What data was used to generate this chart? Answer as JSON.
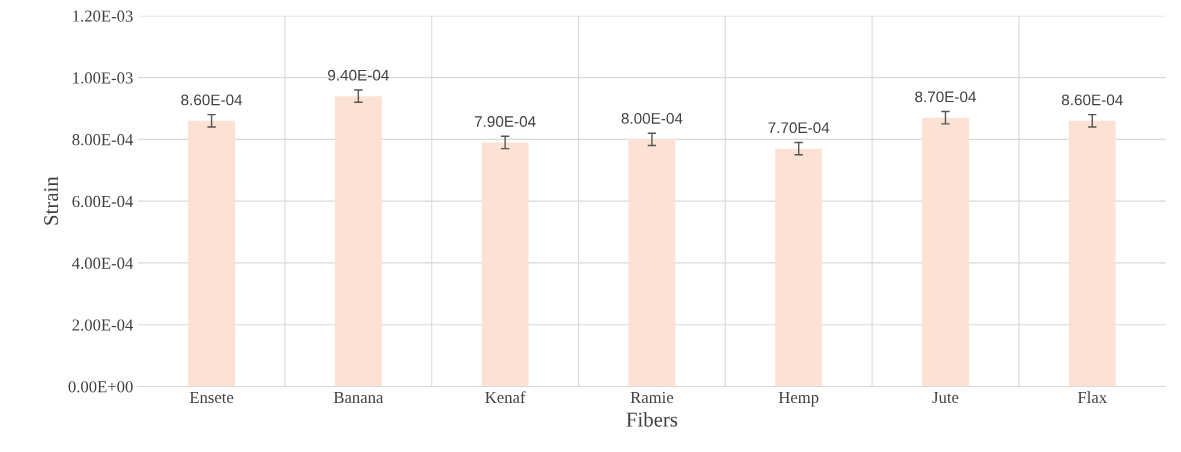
{
  "chart_data": {
    "type": "bar",
    "xlabel": "Fibers",
    "ylabel": "Strain",
    "categories": [
      "Ensete",
      "Banana",
      "Kenaf",
      "Ramie",
      "Hemp",
      "Jute",
      "Flax"
    ],
    "values": [
      0.00086,
      0.00094,
      0.00079,
      0.0008,
      0.00077,
      0.00087,
      0.00086
    ],
    "errors": [
      2e-05,
      2e-05,
      2e-05,
      2e-05,
      2e-05,
      2e-05,
      2e-05
    ],
    "value_labels": [
      "8.60E-04",
      "9.40E-04",
      "7.90E-04",
      "8.00E-04",
      "7.70E-04",
      "8.70E-04",
      "8.60E-04"
    ],
    "color": "#fbe2d5",
    "ylim": [
      0,
      0.0012
    ],
    "yticks": [
      {
        "value": 0,
        "label": "0.00E+00"
      },
      {
        "value": 0.0002,
        "label": "2.00E-04"
      },
      {
        "value": 0.0004,
        "label": "4.00E-04"
      },
      {
        "value": 0.0006,
        "label": "6.00E-04"
      },
      {
        "value": 0.0008,
        "label": "8.00E-04"
      },
      {
        "value": 0.001,
        "label": "1.00E-03"
      },
      {
        "value": 0.0012,
        "label": "1.20E-03"
      }
    ],
    "grid": true,
    "legend": false
  }
}
